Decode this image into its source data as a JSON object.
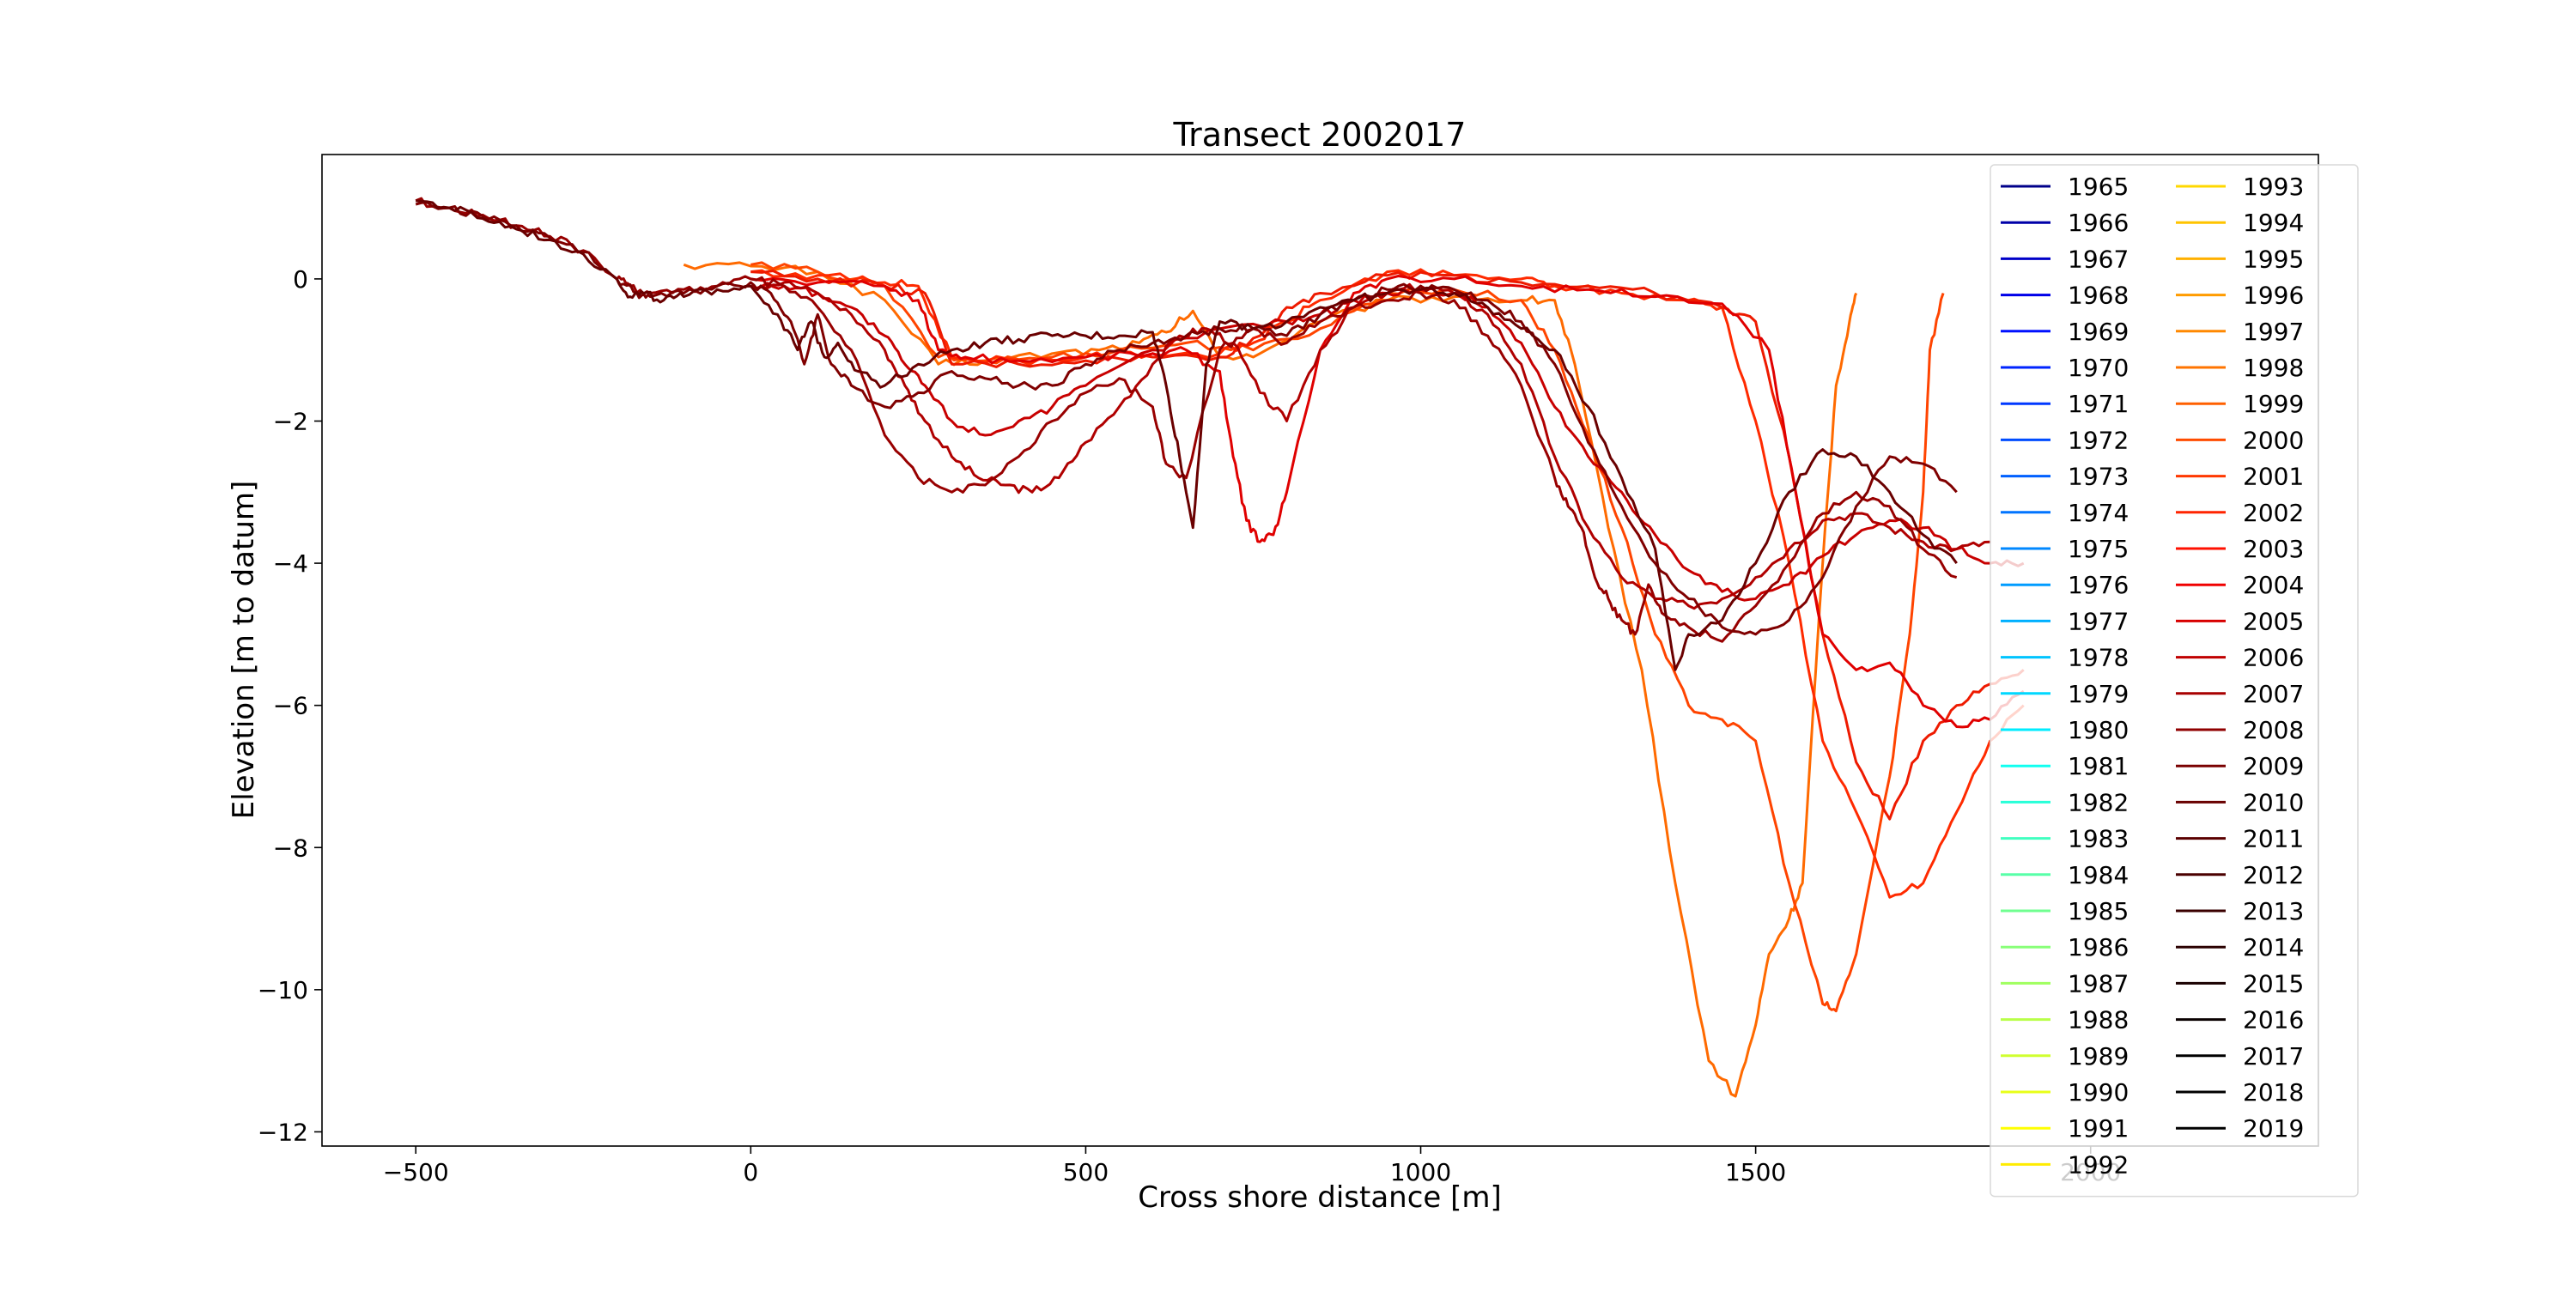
{
  "chart_data": {
    "type": "line",
    "title": "Transect 2002017",
    "xlabel": "Cross shore distance [m]",
    "ylabel": "Elevation [m to datum]",
    "xlim": [
      -640,
      2340
    ],
    "ylim": [
      -12.2,
      1.75
    ],
    "xticks": [
      -500,
      0,
      500,
      1000,
      1500,
      2000
    ],
    "yticks": [
      -12,
      -10,
      -8,
      -6,
      -4,
      -2,
      0
    ],
    "xtick_labels": [
      "−500",
      "0",
      "500",
      "1000",
      "1500",
      "2000"
    ],
    "ytick_labels": [
      "−12",
      "−10",
      "−8",
      "−6",
      "−4",
      "−2",
      "0"
    ],
    "grid": false,
    "legend": {
      "placement": "top-right",
      "columns": 2,
      "labels": [
        "1965",
        "1966",
        "1967",
        "1968",
        "1969",
        "1970",
        "1971",
        "1972",
        "1973",
        "1974",
        "1975",
        "1976",
        "1977",
        "1978",
        "1979",
        "1980",
        "1981",
        "1982",
        "1983",
        "1984",
        "1985",
        "1986",
        "1987",
        "1988",
        "1989",
        "1990",
        "1991",
        "1992",
        "1993",
        "1994",
        "1995",
        "1996",
        "1997",
        "1998",
        "1999",
        "2000",
        "2001",
        "2002",
        "2003",
        "2004",
        "2005",
        "2006",
        "2007",
        "2008",
        "2009",
        "2010",
        "2011",
        "2012",
        "2013",
        "2014",
        "2015",
        "2016",
        "2017",
        "2018",
        "2019"
      ],
      "colors": [
        "#00008a",
        "#0000a8",
        "#0000c8",
        "#0000e8",
        "#0010ff",
        "#0024ff",
        "#0038ff",
        "#004cff",
        "#0060ff",
        "#0074ff",
        "#0088ff",
        "#009cff",
        "#00b0ff",
        "#00c4ff",
        "#00d8ff",
        "#00ecff",
        "#10fff0",
        "#28ffd8",
        "#40ffc0",
        "#58ffa8",
        "#70ff90",
        "#88ff78",
        "#a0ff60",
        "#b8ff48",
        "#d0ff30",
        "#e8ff18",
        "#ffff00",
        "#ffec00",
        "#ffd800",
        "#ffc400",
        "#ffb000",
        "#ff9c00",
        "#ff8800",
        "#ff7400",
        "#ff6000",
        "#ff4c00",
        "#ff3800",
        "#ff2400",
        "#ff1000",
        "#f00000",
        "#d80000",
        "#c00000",
        "#a80000",
        "#900000",
        "#7a0000",
        "#6a0000",
        "#5a0000",
        "#4a0000",
        "#3a0000",
        "#2a0000",
        "#1a0000",
        "#0a0000",
        "#000000",
        "#000000",
        "#000000"
      ]
    },
    "series": [
      {
        "color": "#ff6a00",
        "x": [
          -100,
          0,
          100,
          200,
          280,
          350,
          450,
          520,
          580,
          620,
          660,
          700,
          760,
          850,
          950,
          1050,
          1150,
          1200,
          1230,
          1280,
          1330,
          1380,
          1430,
          1470,
          1500,
          1520,
          1550,
          1570,
          1600,
          1620,
          1640,
          1650
        ],
        "y": [
          0.2,
          0.18,
          0.1,
          -0.3,
          -1.2,
          -1.15,
          -1.05,
          -1.0,
          -0.9,
          -0.75,
          -0.45,
          -1.1,
          -1.05,
          -0.6,
          -0.3,
          -0.25,
          -0.3,
          -0.3,
          -1.2,
          -3.5,
          -5.5,
          -8.5,
          -11.0,
          -11.5,
          -10.5,
          -9.5,
          -9.0,
          -8.5,
          -4.0,
          -1.5,
          -0.6,
          -0.2
        ]
      },
      {
        "color": "#ff4400",
        "x": [
          0,
          100,
          200,
          280,
          350,
          450,
          550,
          650,
          750,
          850,
          950,
          1050,
          1150,
          1200,
          1250,
          1300,
          1350,
          1400,
          1450,
          1500,
          1550,
          1600,
          1620,
          1650,
          1700,
          1730,
          1750,
          1760,
          1780
        ],
        "y": [
          0.2,
          0.1,
          -0.1,
          -1.1,
          -1.15,
          -1.1,
          -1.0,
          -0.9,
          -1.0,
          -0.7,
          -0.2,
          -0.15,
          -0.3,
          -1.0,
          -2.2,
          -3.5,
          -5.0,
          -6.0,
          -6.2,
          -6.5,
          -8.5,
          -10.2,
          -10.3,
          -9.5,
          -7.0,
          -5.0,
          -3.0,
          -1.0,
          -0.2
        ]
      },
      {
        "color": "#ff2a00",
        "x": [
          0,
          100,
          200,
          250,
          300,
          400,
          500,
          600,
          700,
          750,
          800,
          850,
          950,
          1050,
          1150,
          1200,
          1300,
          1400,
          1450,
          1500,
          1550,
          1600,
          1650,
          1700,
          1750,
          1800,
          1850,
          1900
        ],
        "y": [
          0.1,
          0.05,
          -0.05,
          -0.1,
          -1.1,
          -1.15,
          -1.1,
          -1.05,
          -1.05,
          -0.9,
          -0.6,
          -0.3,
          0.1,
          0.05,
          0.0,
          -0.1,
          -0.2,
          -0.3,
          -0.4,
          -2.0,
          -4.0,
          -6.5,
          -7.5,
          -8.7,
          -8.5,
          -7.5,
          -6.5,
          -6.0
        ]
      },
      {
        "color": "#ee1a00",
        "x": [
          0,
          100,
          200,
          260,
          300,
          400,
          500,
          600,
          700,
          760,
          800,
          850,
          950,
          1050,
          1150,
          1250,
          1350,
          1450,
          1500,
          1550,
          1600,
          1650,
          1700,
          1750,
          1800,
          1850,
          1900
        ],
        "y": [
          0.1,
          0.0,
          -0.1,
          -0.2,
          -1.2,
          -1.2,
          -1.15,
          -1.1,
          -1.1,
          -0.8,
          -0.4,
          -0.2,
          0.05,
          0.05,
          -0.05,
          -0.1,
          -0.2,
          -0.4,
          -0.6,
          -2.5,
          -5.0,
          -6.8,
          -7.6,
          -6.5,
          -6.0,
          -5.7,
          -5.5
        ]
      },
      {
        "color": "#e00000",
        "x": [
          0,
          100,
          200,
          250,
          280,
          320,
          400,
          500,
          600,
          650,
          700,
          720,
          740,
          760,
          780,
          800,
          850,
          900,
          950,
          1050,
          1150,
          1250,
          1350,
          1450,
          1520,
          1560,
          1600,
          1650,
          1700,
          1750,
          1800,
          1850,
          1900
        ],
        "y": [
          0.0,
          -0.05,
          -0.1,
          -0.3,
          -1.0,
          -1.1,
          -1.15,
          -1.1,
          -1.05,
          -1.0,
          -1.3,
          -2.5,
          -3.4,
          -3.7,
          -3.6,
          -3.0,
          -1.0,
          -0.2,
          0.0,
          0.0,
          -0.1,
          -0.15,
          -0.25,
          -0.35,
          -1.0,
          -3.0,
          -5.0,
          -5.5,
          -5.4,
          -6.0,
          -6.3,
          -6.2,
          -5.8
        ]
      },
      {
        "color": "#c80000",
        "x": [
          0,
          50,
          100,
          150,
          200,
          230,
          260,
          300,
          350,
          400,
          450,
          500,
          600,
          700,
          800,
          850,
          900,
          950,
          1000,
          1050,
          1100,
          1150,
          1200,
          1250,
          1300,
          1350,
          1400,
          1450,
          1500,
          1550,
          1600,
          1650,
          1700,
          1750,
          1800,
          1850,
          1900
        ],
        "y": [
          -0.1,
          -0.1,
          -0.2,
          -0.4,
          -0.8,
          -1.2,
          -1.5,
          -2.0,
          -2.2,
          -2.0,
          -1.8,
          -1.5,
          -1.0,
          -0.7,
          -0.6,
          -0.5,
          -0.3,
          -0.2,
          -0.15,
          -0.2,
          -0.4,
          -0.9,
          -1.8,
          -2.5,
          -3.0,
          -3.6,
          -4.1,
          -4.4,
          -4.5,
          -4.3,
          -3.9,
          -3.6,
          -3.4,
          -3.5,
          -3.8,
          -4.0,
          -4.0
        ]
      },
      {
        "color": "#b00000",
        "x": [
          0,
          50,
          100,
          150,
          200,
          230,
          260,
          300,
          340,
          380,
          420,
          460,
          500,
          550,
          600,
          640,
          680,
          720,
          760,
          800,
          850,
          900,
          950,
          1000,
          1050,
          1100,
          1150,
          1200,
          1250,
          1300,
          1350,
          1400,
          1450,
          1500,
          1550,
          1600,
          1650,
          1700,
          1750,
          1800,
          1850
        ],
        "y": [
          -0.1,
          -0.05,
          -0.2,
          -0.5,
          -1.0,
          -1.5,
          -2.0,
          -2.5,
          -2.8,
          -2.9,
          -3.0,
          -2.8,
          -2.3,
          -1.8,
          -1.2,
          -0.8,
          -0.7,
          -0.9,
          -1.6,
          -2.0,
          -1.0,
          -0.4,
          -0.2,
          -0.1,
          -0.2,
          -0.5,
          -1.2,
          -2.5,
          -3.5,
          -4.2,
          -4.5,
          -4.6,
          -4.5,
          -4.2,
          -3.8,
          -3.4,
          -3.3,
          -3.5,
          -3.7,
          -3.8,
          -3.7
        ]
      },
      {
        "color": "#980000",
        "x": [
          -500,
          -450,
          -400,
          -350,
          -300,
          -250,
          -200,
          -180,
          -150,
          -100,
          -50,
          0,
          50,
          100,
          150,
          200,
          250,
          300,
          350,
          400,
          450,
          500,
          550,
          600,
          620,
          650,
          700,
          750,
          800,
          850,
          900,
          950,
          1000,
          1050,
          1100,
          1150,
          1200,
          1220,
          1240,
          1260,
          1280,
          1300,
          1320,
          1340,
          1360,
          1400,
          1450,
          1500,
          1550,
          1600,
          1650,
          1700,
          1750,
          1800
        ],
        "y": [
          1.1,
          1.0,
          0.9,
          0.75,
          0.6,
          0.4,
          0.0,
          -0.1,
          -0.2,
          -0.15,
          -0.1,
          0.0,
          -0.1,
          -0.4,
          -1.0,
          -2.2,
          -2.8,
          -3.0,
          -2.9,
          -2.5,
          -2.0,
          -1.6,
          -1.4,
          -1.8,
          -2.6,
          -2.8,
          -1.0,
          -0.7,
          -0.9,
          -0.6,
          -0.4,
          -0.3,
          -0.2,
          -0.3,
          -0.8,
          -1.5,
          -2.8,
          -3.2,
          -3.5,
          -4.2,
          -4.5,
          -4.8,
          -5.0,
          -4.3,
          -4.7,
          -4.9,
          -5.1,
          -4.6,
          -4.0,
          -3.3,
          -3.0,
          -3.2,
          -3.8,
          -4.2
        ]
      },
      {
        "color": "#800000",
        "x": [
          -500,
          -450,
          -400,
          -350,
          -300,
          -250,
          -200,
          -170,
          -150,
          -100,
          -50,
          0,
          30,
          60,
          80,
          100,
          120,
          150,
          200,
          250,
          300,
          350,
          400,
          450,
          500,
          550,
          600,
          650,
          700,
          750,
          800,
          850,
          900,
          950,
          1000,
          1050,
          1100,
          1150,
          1200,
          1250,
          1300,
          1350,
          1400,
          1450,
          1500,
          1550,
          1600,
          1650,
          1700,
          1750,
          1800
        ],
        "y": [
          1.05,
          1.0,
          0.88,
          0.75,
          0.58,
          0.38,
          0.0,
          -0.2,
          -0.25,
          -0.2,
          -0.1,
          -0.05,
          -0.2,
          -0.6,
          -1.2,
          -0.5,
          -1.2,
          -1.5,
          -1.8,
          -1.6,
          -1.3,
          -1.4,
          -1.5,
          -1.5,
          -1.2,
          -1.0,
          -0.9,
          -0.8,
          -0.7,
          -0.7,
          -0.8,
          -0.5,
          -0.3,
          -0.15,
          -0.1,
          -0.15,
          -0.3,
          -0.6,
          -1.2,
          -2.3,
          -3.2,
          -4.0,
          -4.5,
          -4.9,
          -5.0,
          -4.8,
          -4.2,
          -3.2,
          -2.5,
          -2.6,
          -3.0
        ]
      },
      {
        "color": "#6a0000",
        "x": [
          -500,
          -450,
          -400,
          -350,
          -300,
          -250,
          -200,
          -180,
          -160,
          -130,
          -100,
          -50,
          0,
          40,
          70,
          90,
          110,
          130,
          160,
          200,
          250,
          300,
          350,
          400,
          450,
          500,
          550,
          600,
          620,
          640,
          660,
          680,
          700,
          750,
          800,
          850,
          900,
          950,
          1000,
          1050,
          1100,
          1150,
          1200,
          1250,
          1300,
          1350,
          1380,
          1400,
          1450,
          1500,
          1550,
          1600,
          1650,
          1700,
          1750,
          1800
        ],
        "y": [
          1.1,
          1.0,
          0.85,
          0.7,
          0.55,
          0.35,
          0.0,
          -0.25,
          -0.2,
          -0.3,
          -0.25,
          -0.15,
          -0.1,
          -0.5,
          -1.0,
          -0.6,
          -1.1,
          -0.9,
          -1.3,
          -1.5,
          -1.2,
          -1.0,
          -0.9,
          -0.85,
          -0.8,
          -0.8,
          -0.8,
          -0.75,
          -1.5,
          -2.5,
          -3.5,
          -1.2,
          -0.6,
          -0.7,
          -0.6,
          -0.4,
          -0.3,
          -0.2,
          -0.15,
          -0.2,
          -0.4,
          -0.7,
          -1.0,
          -1.8,
          -2.8,
          -3.8,
          -5.5,
          -5.0,
          -4.8,
          -4.0,
          -3.0,
          -2.4,
          -2.5,
          -3.0,
          -3.6,
          -4.0
        ]
      }
    ]
  }
}
